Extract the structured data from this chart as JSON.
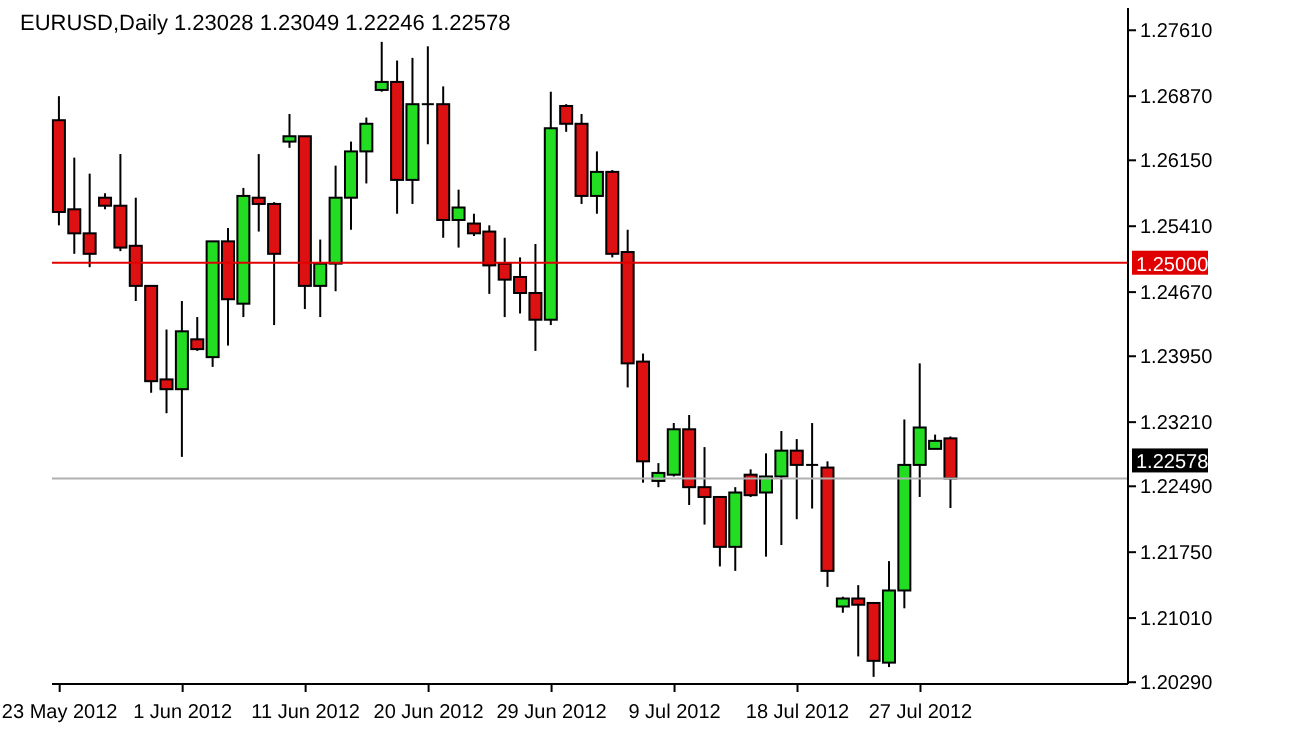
{
  "chart_data": {
    "type": "candlestick",
    "title": "EURUSD,Daily 1.23028 1.23049 1.22246 1.22578",
    "categories": [
      "23 May 2012",
      null,
      null,
      null,
      null,
      null,
      null,
      null,
      "1 Jun 2012",
      null,
      null,
      null,
      null,
      null,
      null,
      null,
      "11 Jun 2012",
      null,
      null,
      null,
      null,
      null,
      null,
      null,
      "20 Jun 2012",
      null,
      null,
      null,
      null,
      null,
      null,
      null,
      "29 Jun 2012",
      null,
      null,
      null,
      null,
      null,
      null,
      null,
      "9 Jul 2012",
      null,
      null,
      null,
      null,
      null,
      null,
      null,
      "18 Jul 2012",
      null,
      null,
      null,
      null,
      null,
      null,
      null,
      "27 Jul 2012",
      null,
      null,
      null,
      null,
      null,
      null,
      null,
      null,
      null,
      null,
      null,
      null,
      null
    ],
    "ohlc": [
      [
        1.266,
        1.2687,
        1.2542,
        1.2557
      ],
      [
        1.256,
        1.2618,
        1.251,
        1.2533
      ],
      [
        1.2533,
        1.26,
        1.2495,
        1.251
      ],
      [
        1.2573,
        1.2578,
        1.256,
        1.2564
      ],
      [
        1.2564,
        1.2622,
        1.2513,
        1.2517
      ],
      [
        1.2519,
        1.2573,
        1.2457,
        1.2474
      ],
      [
        1.2474,
        1.2474,
        1.2354,
        1.2367
      ],
      [
        1.2369,
        1.2425,
        1.2331,
        1.2358
      ],
      [
        1.2358,
        1.2457,
        1.2282,
        1.2423
      ],
      [
        1.2414,
        1.2439,
        1.2401,
        1.2403
      ],
      [
        1.2394,
        1.2524,
        1.2383,
        1.2524
      ],
      [
        1.2524,
        1.2539,
        1.2407,
        1.2459
      ],
      [
        1.2454,
        1.2584,
        1.2439,
        1.2575
      ],
      [
        1.2573,
        1.2622,
        1.2535,
        1.2566
      ],
      [
        1.2566,
        1.2568,
        1.243,
        1.251
      ],
      [
        1.2636,
        1.2667,
        1.2629,
        1.2642
      ],
      [
        1.2642,
        1.2642,
        1.2448,
        1.2474
      ],
      [
        1.2474,
        1.2526,
        1.2439,
        1.2499
      ],
      [
        1.2499,
        1.2609,
        1.2468,
        1.2573
      ],
      [
        1.2573,
        1.2636,
        1.2537,
        1.2625
      ],
      [
        1.2625,
        1.2663,
        1.2589,
        1.2656
      ],
      [
        1.2694,
        1.2748,
        1.2692,
        1.2703
      ],
      [
        1.2703,
        1.2727,
        1.2555,
        1.2593
      ],
      [
        1.2593,
        1.273,
        1.2566,
        1.2678
      ],
      [
        1.2678,
        1.2743,
        1.2633,
        1.2678
      ],
      [
        1.2678,
        1.2698,
        1.2528,
        1.2548
      ],
      [
        1.2548,
        1.2582,
        1.2517,
        1.2562
      ],
      [
        1.2544,
        1.2555,
        1.253,
        1.2533
      ],
      [
        1.2535,
        1.2542,
        1.2465,
        1.2497
      ],
      [
        1.2499,
        1.2528,
        1.2439,
        1.2481
      ],
      [
        1.2484,
        1.2506,
        1.2443,
        1.2466
      ],
      [
        1.2466,
        1.2521,
        1.2401,
        1.2436
      ],
      [
        1.2436,
        1.2692,
        1.243,
        1.2651
      ],
      [
        1.2676,
        1.2678,
        1.2647,
        1.2656
      ],
      [
        1.2656,
        1.2667,
        1.2566,
        1.2575
      ],
      [
        1.2575,
        1.2625,
        1.2555,
        1.2602
      ],
      [
        1.2602,
        1.2604,
        1.2506,
        1.251
      ],
      [
        1.2512,
        1.2537,
        1.236,
        1.2387
      ],
      [
        1.2389,
        1.2398,
        1.2253,
        1.2277
      ],
      [
        1.2255,
        1.2275,
        1.2248,
        1.2264
      ],
      [
        1.2262,
        1.232,
        1.226,
        1.2313
      ],
      [
        1.2313,
        1.2329,
        1.2228,
        1.2248
      ],
      [
        1.2248,
        1.2293,
        1.2206,
        1.2237
      ],
      [
        1.2237,
        1.2237,
        1.2159,
        1.2181
      ],
      [
        1.2181,
        1.2248,
        1.2154,
        1.2242
      ],
      [
        1.2262,
        1.2268,
        1.2237,
        1.2239
      ],
      [
        1.2242,
        1.2286,
        1.217,
        1.226
      ],
      [
        1.226,
        1.2311,
        1.2183,
        1.2289
      ],
      [
        1.2289,
        1.2302,
        1.2212,
        1.2273
      ],
      [
        1.2273,
        1.232,
        1.2224,
        1.2273
      ],
      [
        1.227,
        1.2277,
        1.2136,
        1.2154
      ],
      [
        1.2114,
        1.2125,
        1.2107,
        1.2123
      ],
      [
        1.2123,
        1.2138,
        1.2058,
        1.2116
      ],
      [
        1.2118,
        1.2118,
        1.2035,
        1.2053
      ],
      [
        1.2051,
        1.2165,
        1.2046,
        1.2132
      ],
      [
        1.2132,
        1.2324,
        1.2112,
        1.2273
      ],
      [
        1.2273,
        1.2387,
        1.2237,
        1.2315
      ],
      [
        1.2291,
        1.2307,
        1.2291,
        1.23
      ],
      [
        1.23028,
        1.23049,
        1.22246,
        1.22578
      ],
      null,
      null,
      null,
      null,
      null,
      null,
      null,
      null,
      null,
      null,
      null
    ],
    "colors": [
      "#dd1111",
      "#dd1111",
      "#dd1111",
      "#dd1111",
      "#dd1111",
      "#dd1111",
      "#dd1111",
      "#dd1111",
      "#22dd22",
      "#dd1111",
      "#22dd22",
      "#dd1111",
      "#22dd22",
      "#dd1111",
      "#dd1111",
      "#22dd22",
      "#dd1111",
      "#22dd22",
      "#22dd22",
      "#22dd22",
      "#22dd22",
      "#22dd22",
      "#dd1111",
      "#22dd22",
      "#000000",
      "#dd1111",
      "#22dd22",
      "#dd1111",
      "#dd1111",
      "#dd1111",
      "#dd1111",
      "#dd1111",
      "#22dd22",
      "#dd1111",
      "#dd1111",
      "#22dd22",
      "#dd1111",
      "#dd1111",
      "#dd1111",
      "#22dd22",
      "#22dd22",
      "#dd1111",
      "#dd1111",
      "#dd1111",
      "#22dd22",
      "#dd1111",
      "#22dd22",
      "#22dd22",
      "#dd1111",
      "#000000",
      "#dd1111",
      "#22dd22",
      "#dd1111",
      "#dd1111",
      "#22dd22",
      "#22dd22",
      "#22dd22",
      "#22dd22",
      "#dd1111",
      null,
      null,
      null,
      null,
      null,
      null,
      null,
      null,
      null,
      null,
      null
    ],
    "ylim": [
      1.2027,
      1.2786
    ],
    "yticks": [
      {
        "value": 1.2029,
        "label": "1.20290"
      },
      {
        "value": 1.2101,
        "label": "1.21010"
      },
      {
        "value": 1.2175,
        "label": "1.21750"
      },
      {
        "value": 1.2249,
        "label": "1.22490"
      },
      {
        "value": 1.2321,
        "label": "1.23210"
      },
      {
        "value": 1.2395,
        "label": "1.23950"
      },
      {
        "value": 1.2467,
        "label": "1.24670"
      },
      {
        "value": 1.2541,
        "label": "1.25410"
      },
      {
        "value": 1.2615,
        "label": "1.26150"
      },
      {
        "value": 1.2687,
        "label": "1.26870"
      },
      {
        "value": 1.2761,
        "label": "1.27610"
      }
    ],
    "ref_lines": [
      {
        "axis": "y",
        "value": 1.25,
        "label": "1.25000",
        "color": "#e00000"
      },
      {
        "axis": "y",
        "value": 1.22578,
        "label": "1.22578",
        "color": "#b0b0b0"
      }
    ]
  }
}
